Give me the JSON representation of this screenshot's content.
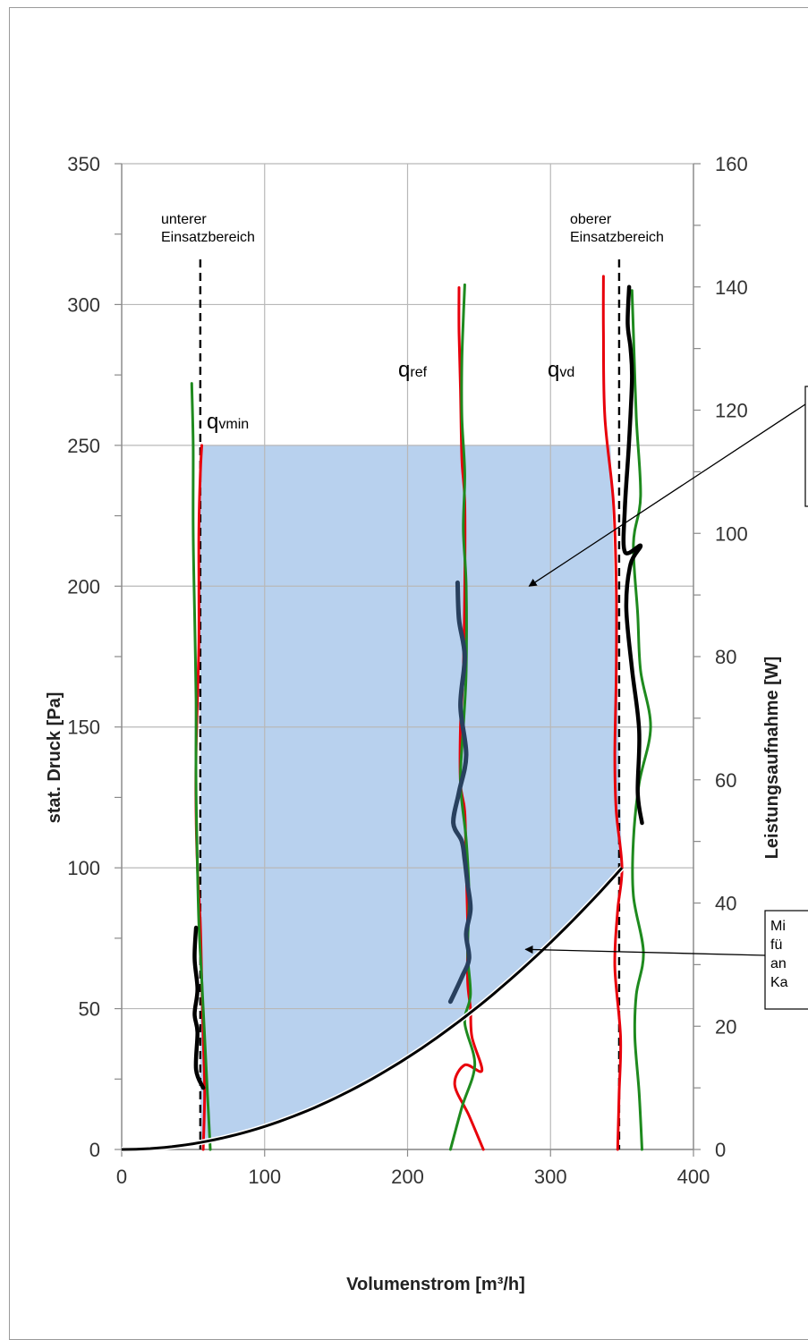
{
  "chart_data": {
    "type": "line",
    "xlabel": "Volumenstrom [m³/h]",
    "ylabel_left": "stat. Druck [Pa]",
    "ylabel_right": "Leistungsaufnahme [W]",
    "xlim": [
      0,
      400
    ],
    "ylim_left": [
      0,
      350
    ],
    "ylim_right": [
      0,
      160
    ],
    "x_ticks": [
      "0",
      "100",
      "200",
      "300",
      "400"
    ],
    "y_left_ticks": [
      "0",
      "50",
      "100",
      "150",
      "200",
      "250",
      "300",
      "350"
    ],
    "y_right_ticks": [
      "0",
      "20",
      "40",
      "60",
      "80",
      "100",
      "120",
      "140",
      "160"
    ],
    "grid": true,
    "operating_area": {
      "color": "#b8d1ee",
      "p_max": 250,
      "q_min": 55,
      "q_max": 350,
      "p_at_q_max": 100
    },
    "system_curve": {
      "color": "#000000",
      "points": [
        [
          0,
          0
        ],
        [
          50,
          2.0
        ],
        [
          100,
          8.2
        ],
        [
          150,
          18.4
        ],
        [
          200,
          32.7
        ],
        [
          250,
          51.0
        ],
        [
          300,
          73.5
        ],
        [
          350,
          100
        ]
      ]
    },
    "vertical_lines": [
      {
        "x": 55,
        "label": "unterer\nEinsatzbereich"
      },
      {
        "x": 348,
        "label": "oberer\nEinsatzbereich"
      }
    ],
    "point_labels": [
      {
        "main": "q",
        "sub": "vmin",
        "x": 62,
        "y": 255
      },
      {
        "main": "q",
        "sub": "ref",
        "x": 195,
        "y": 276
      },
      {
        "main": "q",
        "sub": "vd",
        "x": 300,
        "y": 276
      }
    ],
    "series": [
      {
        "color": "#e8000b",
        "axis": "left",
        "points": [
          [
            57,
            0
          ],
          [
            58,
            20
          ],
          [
            57,
            40
          ],
          [
            56,
            60
          ],
          [
            55,
            80
          ],
          [
            53,
            100
          ],
          [
            52,
            120
          ],
          [
            52,
            140
          ],
          [
            53,
            160
          ],
          [
            54,
            180
          ],
          [
            54,
            200
          ],
          [
            54,
            220
          ],
          [
            55,
            240
          ],
          [
            56,
            250
          ]
        ]
      },
      {
        "color": "#1e8a1e",
        "axis": "left",
        "points": [
          [
            62,
            0
          ],
          [
            60,
            20
          ],
          [
            58,
            40
          ],
          [
            56,
            60
          ],
          [
            54,
            80
          ],
          [
            53,
            100
          ],
          [
            52,
            130
          ],
          [
            52,
            160
          ],
          [
            51,
            190
          ],
          [
            50,
            220
          ],
          [
            50,
            250
          ],
          [
            49,
            272
          ]
        ]
      },
      {
        "color": "#e8000b",
        "axis": "left",
        "points": [
          [
            253,
            0
          ],
          [
            243,
            12
          ],
          [
            233,
            23
          ],
          [
            240,
            30
          ],
          [
            252,
            28
          ],
          [
            245,
            40
          ],
          [
            244,
            50
          ],
          [
            242,
            60
          ],
          [
            242,
            80
          ],
          [
            241,
            100
          ],
          [
            240,
            120
          ],
          [
            237,
            130
          ],
          [
            237,
            150
          ],
          [
            239,
            170
          ],
          [
            240,
            200
          ],
          [
            240,
            230
          ],
          [
            238,
            245
          ],
          [
            237,
            270
          ],
          [
            236,
            290
          ],
          [
            236,
            306
          ]
        ]
      },
      {
        "color": "#1e8a1e",
        "axis": "left",
        "points": [
          [
            230,
            0
          ],
          [
            238,
            15
          ],
          [
            247,
            30
          ],
          [
            240,
            45
          ],
          [
            244,
            55
          ],
          [
            242,
            70
          ],
          [
            243,
            90
          ],
          [
            241,
            110
          ],
          [
            237,
            130
          ],
          [
            239,
            150
          ],
          [
            241,
            170
          ],
          [
            241,
            200
          ],
          [
            239,
            220
          ],
          [
            240,
            240
          ],
          [
            238,
            260
          ],
          [
            238,
            280
          ],
          [
            239,
            295
          ],
          [
            240,
            307
          ]
        ]
      },
      {
        "color": "#e8000b",
        "axis": "left",
        "points": [
          [
            347,
            0
          ],
          [
            348,
            20
          ],
          [
            349,
            40
          ],
          [
            345,
            65
          ],
          [
            347,
            85
          ],
          [
            350,
            100
          ],
          [
            346,
            120
          ],
          [
            345,
            140
          ],
          [
            346,
            170
          ],
          [
            346,
            200
          ],
          [
            344,
            230
          ],
          [
            338,
            260
          ],
          [
            337,
            290
          ],
          [
            337,
            310
          ]
        ]
      },
      {
        "color": "#1e8a1e",
        "axis": "left",
        "points": [
          [
            364,
            0
          ],
          [
            362,
            20
          ],
          [
            359,
            40
          ],
          [
            360,
            55
          ],
          [
            365,
            70
          ],
          [
            358,
            90
          ],
          [
            358,
            110
          ],
          [
            362,
            130
          ],
          [
            370,
            150
          ],
          [
            363,
            170
          ],
          [
            361,
            190
          ],
          [
            358,
            215
          ],
          [
            363,
            232
          ],
          [
            360,
            260
          ],
          [
            358,
            290
          ],
          [
            357,
            305
          ]
        ]
      },
      {
        "color": "#000000",
        "axis": "right",
        "width": 4.5,
        "points": [
          [
            57,
            10
          ],
          [
            52,
            13
          ],
          [
            53,
            19
          ],
          [
            51,
            22
          ],
          [
            53,
            26
          ],
          [
            51,
            31
          ],
          [
            52,
            36
          ]
        ]
      },
      {
        "color": "#000000",
        "axis": "right",
        "width": 4.5,
        "points": [
          [
            364,
            53
          ],
          [
            361,
            58
          ],
          [
            362,
            68
          ],
          [
            357,
            78
          ],
          [
            353,
            88
          ],
          [
            356,
            95
          ],
          [
            363,
            98
          ],
          [
            352,
            97
          ],
          [
            352,
            104
          ],
          [
            355,
            115
          ],
          [
            357,
            125
          ],
          [
            356,
            130
          ],
          [
            354,
            134
          ],
          [
            355,
            140
          ]
        ]
      },
      {
        "color": "#28405e",
        "axis": "right",
        "width": 5,
        "points": [
          [
            230,
            24
          ],
          [
            238,
            28
          ],
          [
            243,
            31
          ],
          [
            241,
            35
          ],
          [
            244,
            39
          ],
          [
            242,
            43
          ],
          [
            240,
            47
          ],
          [
            238,
            50
          ],
          [
            232,
            53
          ],
          [
            236,
            58
          ],
          [
            241,
            64
          ],
          [
            237,
            72
          ],
          [
            240,
            80
          ],
          [
            236,
            86
          ],
          [
            235,
            92
          ]
        ]
      }
    ],
    "annotations": [
      {
        "text_lines": [
          "Mi",
          "fü",
          "an",
          "Ka"
        ],
        "target": [
          280,
          72
        ]
      },
      {
        "text_lines": [
          "",
          "",
          ""
        ],
        "target": [
          285,
          200
        ]
      }
    ]
  }
}
